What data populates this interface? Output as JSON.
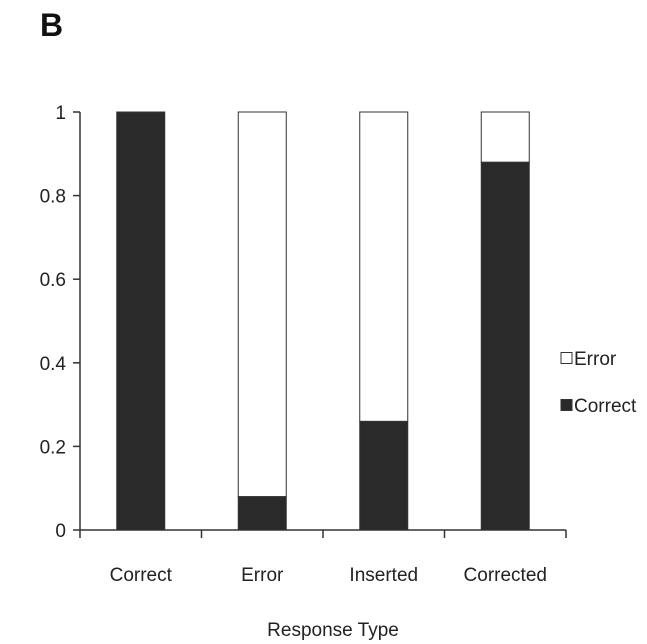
{
  "panel_label": "B",
  "chart_data": {
    "type": "bar",
    "stacked": true,
    "title": "",
    "xlabel": "Response Type",
    "ylabel": "",
    "ylim": [
      0,
      1
    ],
    "yticks": [
      "0",
      "0.2",
      "0.4",
      "0.6",
      "0.8",
      "1"
    ],
    "categories": [
      "Correct",
      "Error",
      "Inserted",
      "Corrected"
    ],
    "series": [
      {
        "name": "Correct",
        "color": "#2a2a2a",
        "values": [
          1.0,
          0.08,
          0.26,
          0.88
        ]
      },
      {
        "name": "Error",
        "color": "#ffffff",
        "values": [
          0.0,
          0.92,
          0.74,
          0.12
        ]
      }
    ],
    "legend": {
      "placement": "right",
      "entries": [
        "Error",
        "Correct"
      ]
    },
    "grid": false
  }
}
